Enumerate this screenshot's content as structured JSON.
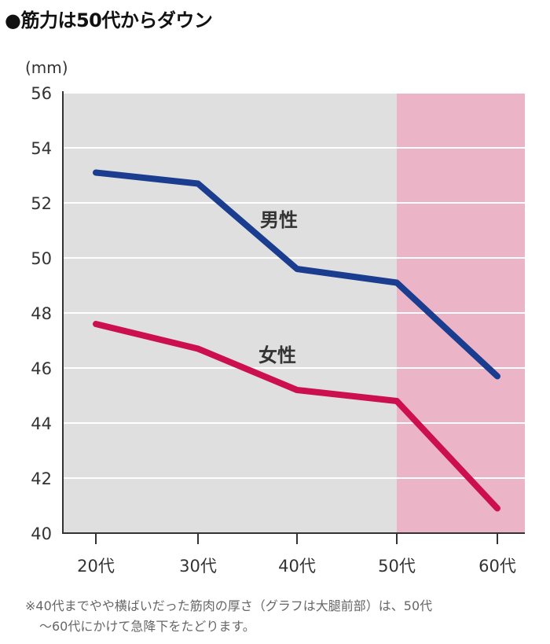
{
  "header": {
    "title": "●筋力は50代からダウン"
  },
  "chart_data": {
    "type": "line",
    "title": "●筋力は50代からダウン",
    "ylabel": "(mm)",
    "xlabel": "",
    "categories": [
      "20代",
      "30代",
      "40代",
      "50代",
      "60代"
    ],
    "ylim": [
      40,
      56
    ],
    "yticks": [
      "40",
      "42",
      "44",
      "46",
      "48",
      "50",
      "52",
      "54",
      "56"
    ],
    "grid": true,
    "highlight_region": {
      "from_category": "50代",
      "to_category": "60代"
    },
    "colors": {
      "background": "#e0dfdf",
      "highlight": "#ebb5c7",
      "male": "#1b3d8f",
      "female": "#cc0f4f"
    },
    "series": [
      {
        "name": "男性",
        "values": [
          53.1,
          52.7,
          49.6,
          49.1,
          45.7
        ]
      },
      {
        "name": "女性",
        "values": [
          47.6,
          46.7,
          45.2,
          44.8,
          40.9
        ]
      }
    ]
  },
  "footnote": {
    "line1": "※40代までやや横ばいだった筋肉の厚さ（グラフは大腿前部）は、50代",
    "line2": "〜60代にかけて急降下をたどります。"
  }
}
